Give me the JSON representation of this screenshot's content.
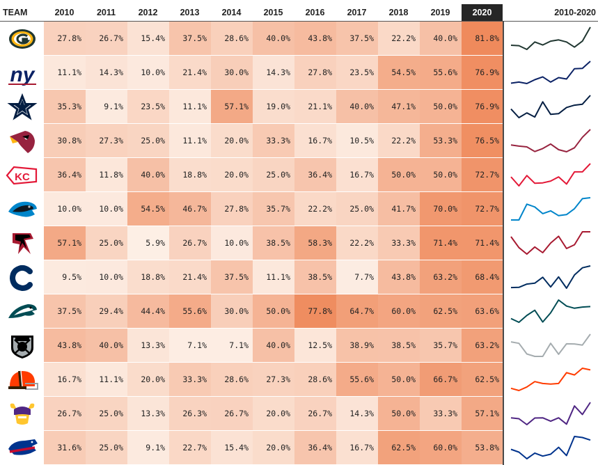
{
  "header": {
    "team_label": "TEAM",
    "spark_label": "2010-2020"
  },
  "chart_data": {
    "type": "table",
    "columns": [
      "2010",
      "2011",
      "2012",
      "2013",
      "2014",
      "2015",
      "2016",
      "2017",
      "2018",
      "2019",
      "2020"
    ],
    "highlight_column": "2020",
    "rows": [
      {
        "team_logo": "packers-logo-icon",
        "color": "#203731",
        "values": [
          27.8,
          26.7,
          15.4,
          37.5,
          28.6,
          40.0,
          43.8,
          37.5,
          22.2,
          40.0,
          81.8
        ]
      },
      {
        "team_logo": "giants-logo-icon",
        "color": "#0b2265",
        "values": [
          11.1,
          14.3,
          10.0,
          21.4,
          30.0,
          14.3,
          27.8,
          23.5,
          54.5,
          55.6,
          76.9
        ]
      },
      {
        "team_logo": "cowboys-logo-icon",
        "color": "#041e42",
        "values": [
          35.3,
          9.1,
          23.5,
          11.1,
          57.1,
          19.0,
          21.1,
          40.0,
          47.1,
          50.0,
          76.9
        ]
      },
      {
        "team_logo": "cardinals-logo-icon",
        "color": "#97233f",
        "values": [
          30.8,
          27.3,
          25.0,
          11.1,
          20.0,
          33.3,
          16.7,
          10.5,
          22.2,
          53.3,
          76.5
        ]
      },
      {
        "team_logo": "chiefs-logo-icon",
        "color": "#e31837",
        "values": [
          36.4,
          11.8,
          40.0,
          18.8,
          20.0,
          25.0,
          36.4,
          16.7,
          50.0,
          50.0,
          72.7
        ]
      },
      {
        "team_logo": "panthers-logo-icon",
        "color": "#0085ca",
        "values": [
          10.0,
          10.0,
          54.5,
          46.7,
          27.8,
          35.7,
          22.2,
          25.0,
          41.7,
          70.0,
          72.7
        ]
      },
      {
        "team_logo": "falcons-logo-icon",
        "color": "#a71930",
        "values": [
          57.1,
          25.0,
          5.9,
          26.7,
          10.0,
          38.5,
          58.3,
          22.2,
          33.3,
          71.4,
          71.4
        ]
      },
      {
        "team_logo": "colts-logo-icon",
        "color": "#002c5f",
        "values": [
          9.5,
          10.0,
          18.8,
          21.4,
          37.5,
          11.1,
          38.5,
          7.7,
          43.8,
          63.2,
          68.4
        ]
      },
      {
        "team_logo": "eagles-logo-icon",
        "color": "#004c54",
        "values": [
          37.5,
          29.4,
          44.4,
          55.6,
          30.0,
          50.0,
          77.8,
          64.7,
          60.0,
          62.5,
          63.6
        ]
      },
      {
        "team_logo": "raiders-logo-icon",
        "color": "#a5acaf",
        "values": [
          43.8,
          40.0,
          13.3,
          7.1,
          7.1,
          40.0,
          12.5,
          38.9,
          38.5,
          35.7,
          63.2
        ]
      },
      {
        "team_logo": "browns-logo-icon",
        "color": "#ff3c00",
        "values": [
          16.7,
          11.1,
          20.0,
          33.3,
          28.6,
          27.3,
          28.6,
          55.6,
          50.0,
          66.7,
          62.5
        ]
      },
      {
        "team_logo": "vikings-logo-icon",
        "color": "#4f2683",
        "values": [
          26.7,
          25.0,
          13.3,
          26.3,
          26.7,
          20.0,
          26.7,
          14.3,
          50.0,
          33.3,
          57.1
        ]
      },
      {
        "team_logo": "bills-logo-icon",
        "color": "#00338d",
        "values": [
          31.6,
          25.0,
          9.1,
          22.7,
          15.4,
          20.0,
          36.4,
          16.7,
          62.5,
          60.0,
          53.8
        ]
      }
    ],
    "heat_color_low": "#fdf0e7",
    "heat_color_high": "#ef8a5c"
  }
}
